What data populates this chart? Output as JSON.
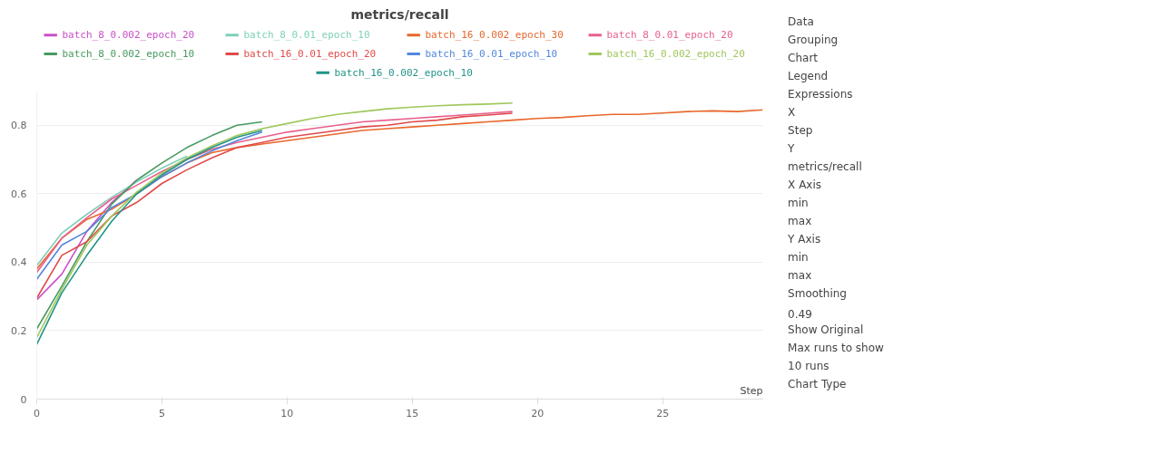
{
  "chart_data": {
    "type": "line",
    "title": "metrics/recall",
    "xlabel": "Step",
    "xlim": [
      0,
      29
    ],
    "xticks": [
      0,
      5,
      10,
      15,
      20,
      25
    ],
    "ylim": [
      0,
      0.9
    ],
    "yticks": [
      0,
      0.2,
      0.4,
      0.6,
      0.8
    ],
    "grid": "y",
    "legend": "top",
    "line_style": "solid",
    "series": [
      {
        "name": "batch_8_0.002_epoch_20",
        "color": "#cc4fc9",
        "x": [
          0,
          1,
          2,
          3,
          4
        ],
        "values": [
          0.29,
          0.365,
          0.49,
          0.575,
          0.64
        ]
      },
      {
        "name": "batch_8_0.01_epoch_10",
        "color": "#7fd1b9",
        "x": [
          0,
          1,
          2,
          3,
          4,
          5,
          6
        ],
        "values": [
          0.39,
          0.485,
          0.54,
          0.59,
          0.635,
          0.675,
          0.71
        ]
      },
      {
        "name": "batch_16_0.002_epoch_30",
        "color": "#e8672c",
        "x": [
          0,
          1,
          2,
          3,
          4,
          5,
          6,
          7,
          8,
          9,
          10,
          11,
          12,
          13,
          14,
          15,
          16,
          17,
          18,
          19,
          20,
          21,
          22,
          23,
          24,
          25,
          26,
          27,
          28,
          29
        ],
        "values": [
          0.38,
          0.47,
          0.525,
          0.555,
          0.6,
          0.65,
          0.69,
          0.72,
          0.735,
          0.745,
          0.755,
          0.765,
          0.775,
          0.785,
          0.79,
          0.795,
          0.8,
          0.805,
          0.81,
          0.815,
          0.82,
          0.823,
          0.828,
          0.832,
          0.832,
          0.836,
          0.84,
          0.842,
          0.84,
          0.845
        ]
      },
      {
        "name": "batch_8_0.01_epoch_20",
        "color": "#e8608c",
        "x": [
          0,
          1,
          2,
          3,
          4,
          5,
          6,
          7,
          8,
          9,
          10,
          11,
          12,
          13,
          14,
          15,
          16,
          17,
          18,
          19
        ],
        "values": [
          0.37,
          0.47,
          0.53,
          0.585,
          0.625,
          0.665,
          0.7,
          0.73,
          0.75,
          0.765,
          0.78,
          0.79,
          0.8,
          0.81,
          0.815,
          0.82,
          0.825,
          0.83,
          0.835,
          0.84
        ]
      },
      {
        "name": "batch_8_0.002_epoch_10",
        "color": "#479a5f",
        "x": [
          0,
          1,
          2,
          3,
          4,
          5,
          6,
          7,
          8,
          9
        ],
        "values": [
          0.205,
          0.33,
          0.46,
          0.57,
          0.64,
          0.69,
          0.735,
          0.77,
          0.8,
          0.81
        ]
      },
      {
        "name": "batch_16_0.01_epoch_20",
        "color": "#e04a4a",
        "x": [
          0,
          1,
          2,
          3,
          4,
          5,
          6,
          7,
          8,
          9,
          10,
          11,
          12,
          13,
          14,
          15,
          16,
          17,
          18,
          19
        ],
        "values": [
          0.295,
          0.42,
          0.46,
          0.535,
          0.575,
          0.63,
          0.67,
          0.705,
          0.735,
          0.75,
          0.765,
          0.775,
          0.785,
          0.795,
          0.8,
          0.81,
          0.815,
          0.825,
          0.83,
          0.835
        ]
      },
      {
        "name": "batch_16_0.01_epoch_10",
        "color": "#5387dd",
        "x": [
          0,
          1,
          2,
          3,
          4,
          5,
          6,
          7,
          8,
          9
        ],
        "values": [
          0.35,
          0.45,
          0.49,
          0.56,
          0.6,
          0.65,
          0.69,
          0.725,
          0.755,
          0.78
        ]
      },
      {
        "name": "batch_16_0.002_epoch_20",
        "color": "#a0c75c",
        "x": [
          0,
          1,
          2,
          3,
          4,
          5,
          6,
          7,
          8,
          9,
          10,
          11,
          12,
          13,
          14,
          15,
          16,
          17,
          18,
          19
        ],
        "values": [
          0.18,
          0.32,
          0.45,
          0.535,
          0.605,
          0.66,
          0.705,
          0.74,
          0.77,
          0.79,
          0.805,
          0.82,
          0.832,
          0.84,
          0.848,
          0.853,
          0.857,
          0.86,
          0.862,
          0.865
        ]
      },
      {
        "name": "batch_16_0.002_epoch_10",
        "color": "#229487",
        "x": [
          0,
          1,
          2,
          3,
          4,
          5,
          6,
          7,
          8,
          9
        ],
        "values": [
          0.16,
          0.31,
          0.42,
          0.52,
          0.6,
          0.655,
          0.7,
          0.735,
          0.765,
          0.785
        ]
      }
    ],
    "annotations": [
      "Data",
      "Grouping",
      "Chart",
      "Legend",
      "Expressions",
      "X",
      "Step",
      "Y",
      "metrics/recall",
      "X Axis",
      "min",
      "max",
      "Y Axis",
      "min",
      "max",
      "Smoothing",
      "0.49",
      "Show Original",
      "Max runs to show",
      "10 runs",
      "Chart Type"
    ]
  }
}
